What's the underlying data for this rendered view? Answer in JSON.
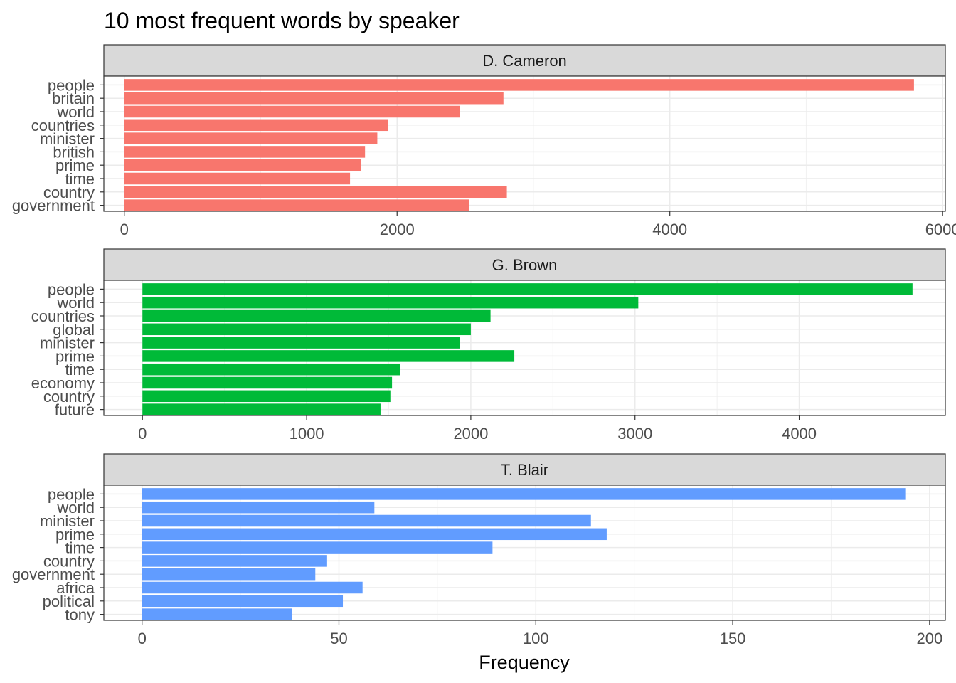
{
  "chart_data": {
    "type": "bar",
    "orientation": "horizontal",
    "title": "10 most frequent words by speaker",
    "xlabel": "Frequency",
    "ylabel": "",
    "grid": true,
    "legend": "none",
    "panels": [
      {
        "name": "D. Cameron",
        "color": "#F8766D",
        "xlim": [
          -150,
          6020
        ],
        "ticks": [
          0,
          2000,
          4000,
          6000
        ],
        "tick_labels": [
          "0",
          "2000",
          "4000",
          "6000"
        ],
        "categories": [
          "people",
          "britain",
          "world",
          "countries",
          "minister",
          "british",
          "prime",
          "time",
          "country",
          "government"
        ],
        "values": [
          5790,
          2780,
          2460,
          1935,
          1855,
          1765,
          1735,
          1655,
          2805,
          2530
        ]
      },
      {
        "name": "G. Brown",
        "color": "#00BA38",
        "xlim": [
          -235,
          4890
        ],
        "ticks": [
          0,
          1000,
          2000,
          3000,
          4000
        ],
        "tick_labels": [
          "0",
          "1000",
          "2000",
          "3000",
          "4000"
        ],
        "categories": [
          "people",
          "world",
          "countries",
          "global",
          "minister",
          "prime",
          "time",
          "economy",
          "country",
          "future"
        ],
        "values": [
          4690,
          3020,
          2120,
          2000,
          1935,
          2265,
          1570,
          1520,
          1510,
          1450
        ]
      },
      {
        "name": "T. Blair",
        "color": "#619CFF",
        "xlim": [
          -9.7,
          204
        ],
        "ticks": [
          0,
          50,
          100,
          150,
          200
        ],
        "tick_labels": [
          "0",
          "50",
          "100",
          "150",
          "200"
        ],
        "categories": [
          "people",
          "world",
          "minister",
          "prime",
          "time",
          "country",
          "government",
          "africa",
          "political",
          "tony"
        ],
        "values": [
          194,
          59,
          114,
          118,
          89,
          47,
          44,
          56,
          51,
          38
        ]
      }
    ]
  }
}
